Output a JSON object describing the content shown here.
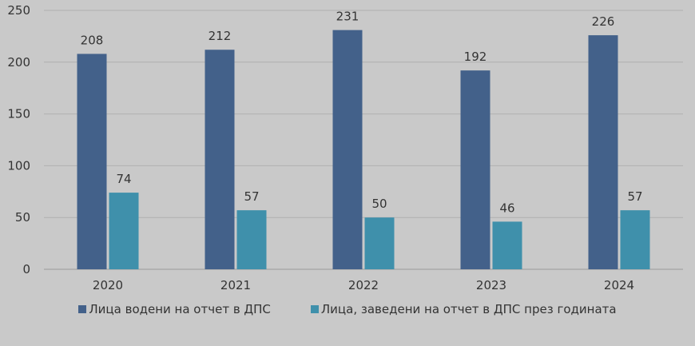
{
  "chart_data": {
    "type": "bar",
    "categories": [
      "2020",
      "2021",
      "2022",
      "2023",
      "2024"
    ],
    "series": [
      {
        "name": "Лица водени на отчет в ДПС",
        "values": [
          208,
          212,
          231,
          192,
          226
        ],
        "color": "#43618a"
      },
      {
        "name": "Лица, заведени на отчет в ДПС през годината",
        "values": [
          74,
          57,
          50,
          46,
          57
        ],
        "color": "#3f90ab"
      }
    ],
    "ylim": [
      0,
      250
    ],
    "yticks": [
      0,
      50,
      100,
      150,
      200,
      250
    ],
    "grid": true,
    "legend": "bottom",
    "title": "",
    "xlabel": "",
    "ylabel": ""
  }
}
